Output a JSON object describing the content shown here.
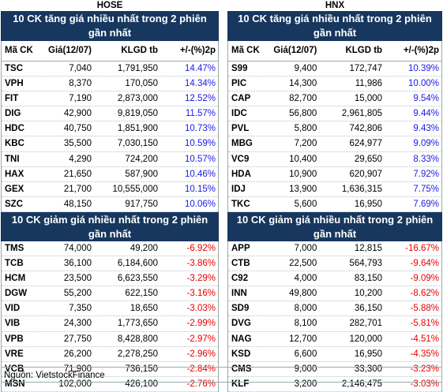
{
  "hose": {
    "exchange": "HOSE",
    "gainers": {
      "title": "10 CK tăng giá nhiều nhất trong 2 phiên gần nhất",
      "columns": [
        "Mã CK",
        "Giá(12/07)",
        "KLGD tb",
        "+/-(%)2p"
      ],
      "rows": [
        {
          "code": "TSC",
          "price": "7,040",
          "volume": "1,791,950",
          "change": "14.47%"
        },
        {
          "code": "VPH",
          "price": "8,370",
          "volume": "170,050",
          "change": "14.34%"
        },
        {
          "code": "FIT",
          "price": "7,190",
          "volume": "2,873,000",
          "change": "12.52%"
        },
        {
          "code": "DIG",
          "price": "42,900",
          "volume": "9,819,050",
          "change": "11.57%"
        },
        {
          "code": "HDC",
          "price": "40,750",
          "volume": "1,851,900",
          "change": "10.73%"
        },
        {
          "code": "KBC",
          "price": "35,500",
          "volume": "7,030,150",
          "change": "10.59%"
        },
        {
          "code": "TNI",
          "price": "4,290",
          "volume": "724,200",
          "change": "10.57%"
        },
        {
          "code": "HAX",
          "price": "21,650",
          "volume": "587,900",
          "change": "10.46%"
        },
        {
          "code": "GEX",
          "price": "21,700",
          "volume": "10,555,000",
          "change": "10.15%"
        },
        {
          "code": "SZC",
          "price": "48,150",
          "volume": "917,750",
          "change": "10.06%"
        }
      ]
    },
    "losers": {
      "title": "10 CK giảm giá nhiều nhất trong 2 phiên gần nhất",
      "rows": [
        {
          "code": "TMS",
          "price": "74,000",
          "volume": "49,200",
          "change": "-6.92%"
        },
        {
          "code": "TCB",
          "price": "36,100",
          "volume": "6,184,600",
          "change": "-3.86%"
        },
        {
          "code": "HCM",
          "price": "23,500",
          "volume": "6,623,550",
          "change": "-3.29%"
        },
        {
          "code": "DGW",
          "price": "55,200",
          "volume": "622,150",
          "change": "-3.16%"
        },
        {
          "code": "VID",
          "price": "7,350",
          "volume": "18,650",
          "change": "-3.03%"
        },
        {
          "code": "VIB",
          "price": "24,300",
          "volume": "1,773,650",
          "change": "-2.99%"
        },
        {
          "code": "VPB",
          "price": "27,750",
          "volume": "8,428,800",
          "change": "-2.97%"
        },
        {
          "code": "VRE",
          "price": "26,200",
          "volume": "2,278,250",
          "change": "-2.96%"
        },
        {
          "code": "VCB",
          "price": "71,900",
          "volume": "736,150",
          "change": "-2.84%"
        },
        {
          "code": "MSN",
          "price": "102,000",
          "volume": "426,100",
          "change": "-2.76%"
        }
      ]
    }
  },
  "hnx": {
    "exchange": "HNX",
    "gainers": {
      "title": "10 CK tăng giá nhiều nhất trong 2 phiên gần nhất",
      "columns": [
        "Mã CK",
        "Giá(12/07)",
        "KLGD tb",
        "+/-(%)2p"
      ],
      "rows": [
        {
          "code": "S99",
          "price": "9,400",
          "volume": "172,747",
          "change": "10.39%"
        },
        {
          "code": "PIC",
          "price": "14,300",
          "volume": "11,986",
          "change": "10.00%"
        },
        {
          "code": "CAP",
          "price": "82,700",
          "volume": "15,000",
          "change": "9.54%"
        },
        {
          "code": "IDC",
          "price": "56,800",
          "volume": "2,961,805",
          "change": "9.44%"
        },
        {
          "code": "PVL",
          "price": "5,800",
          "volume": "742,806",
          "change": "9.43%"
        },
        {
          "code": "MBG",
          "price": "7,200",
          "volume": "624,977",
          "change": "9.09%"
        },
        {
          "code": "VC9",
          "price": "10,400",
          "volume": "29,650",
          "change": "8.33%"
        },
        {
          "code": "HDA",
          "price": "10,900",
          "volume": "620,907",
          "change": "7.92%"
        },
        {
          "code": "IDJ",
          "price": "13,900",
          "volume": "1,636,315",
          "change": "7.75%"
        },
        {
          "code": "TKC",
          "price": "5,600",
          "volume": "16,950",
          "change": "7.69%"
        }
      ]
    },
    "losers": {
      "title": "10 CK giảm giá nhiều nhất trong 2 phiên gần nhất",
      "rows": [
        {
          "code": "APP",
          "price": "7,000",
          "volume": "12,815",
          "change": "-16.67%"
        },
        {
          "code": "CTB",
          "price": "22,500",
          "volume": "564,793",
          "change": "-9.64%"
        },
        {
          "code": "C92",
          "price": "4,000",
          "volume": "83,150",
          "change": "-9.09%"
        },
        {
          "code": "INN",
          "price": "49,800",
          "volume": "10,200",
          "change": "-8.62%"
        },
        {
          "code": "SD9",
          "price": "8,000",
          "volume": "36,150",
          "change": "-5.88%"
        },
        {
          "code": "DVG",
          "price": "8,100",
          "volume": "282,701",
          "change": "-5.81%"
        },
        {
          "code": "NAG",
          "price": "12,700",
          "volume": "120,000",
          "change": "-4.51%"
        },
        {
          "code": "KSD",
          "price": "6,600",
          "volume": "16,950",
          "change": "-4.35%"
        },
        {
          "code": "CMS",
          "price": "9,000",
          "volume": "33,300",
          "change": "-3.23%"
        },
        {
          "code": "KLF",
          "price": "3,200",
          "volume": "2,146,475",
          "change": "-3.03%"
        }
      ]
    }
  },
  "source": "Nguồn: VietstockFinance",
  "colors": {
    "header_bg": "#17375e",
    "gain": "#1a1ae6",
    "loss": "#e60000"
  }
}
